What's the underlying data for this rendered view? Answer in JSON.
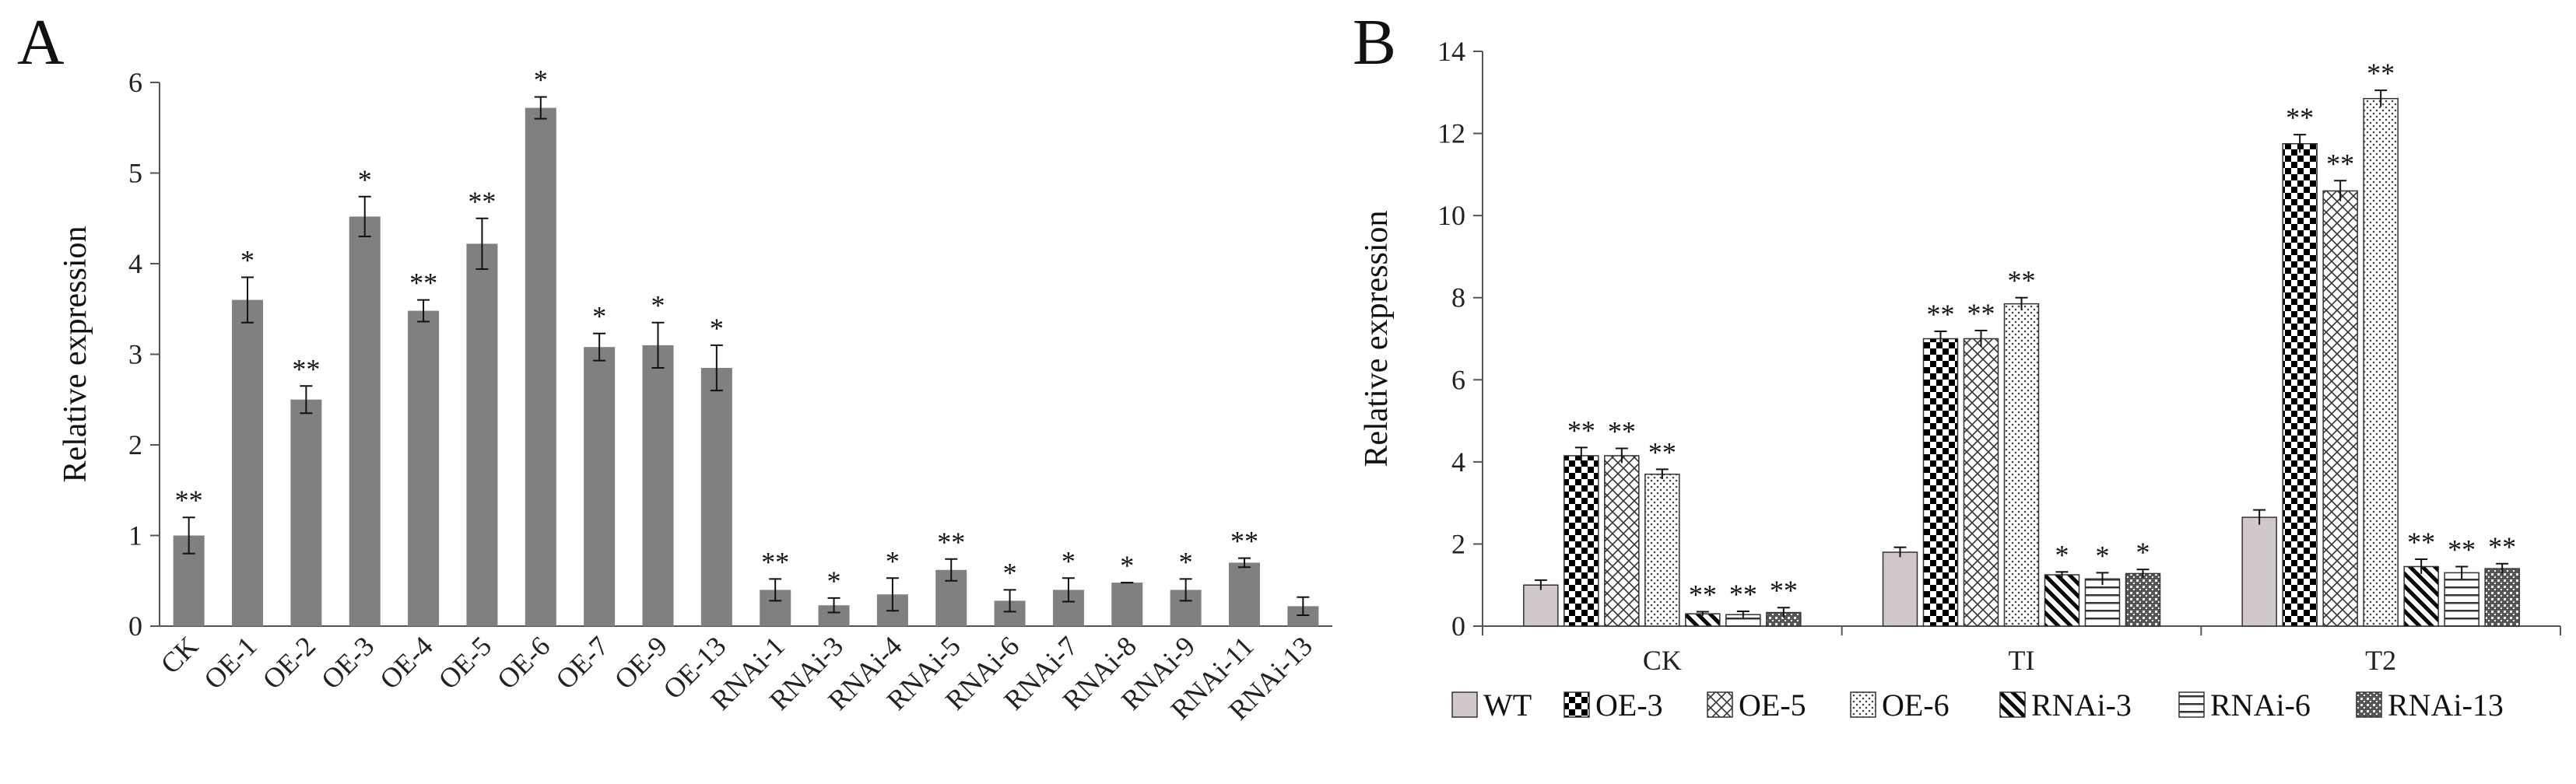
{
  "chart_data": [
    {
      "panel_label": "A",
      "type": "bar",
      "ylabel": "Relative expression",
      "ylim": [
        0,
        6
      ],
      "yticks": [
        "0",
        "1",
        "2",
        "3",
        "4",
        "5",
        "6"
      ],
      "bar_color": "#808080",
      "categories": [
        "CK",
        "OE-1",
        "OE-2",
        "OE-3",
        "OE-4",
        "OE-5",
        "OE-6",
        "OE-7",
        "OE-9",
        "OE-13",
        "RNAi-1",
        "RNAi-3",
        "RNAi-4",
        "RNAi-5",
        "RNAi-6",
        "RNAi-7",
        "RNAi-8",
        "RNAi-9",
        "RNAi-11",
        "RNAi-13"
      ],
      "values": [
        1.0,
        3.6,
        2.5,
        4.52,
        3.48,
        4.22,
        5.72,
        3.08,
        3.1,
        2.85,
        0.4,
        0.23,
        0.35,
        0.62,
        0.28,
        0.4,
        0.48,
        0.4,
        0.7,
        0.22
      ],
      "errors": [
        0.2,
        0.25,
        0.15,
        0.22,
        0.12,
        0.28,
        0.12,
        0.15,
        0.25,
        0.25,
        0.12,
        0.08,
        0.18,
        0.12,
        0.12,
        0.13,
        0.0,
        0.12,
        0.05,
        0.1
      ],
      "significance": [
        "**",
        "*",
        "**",
        "*",
        "**",
        "**",
        "*",
        "*",
        "*",
        "*",
        "**",
        "*",
        "*",
        "**",
        "*",
        "*",
        "*",
        "*",
        "**",
        ""
      ]
    },
    {
      "panel_label": "B",
      "type": "bar",
      "ylabel": "Relative expression",
      "ylim": [
        0,
        14
      ],
      "yticks": [
        "0",
        "2",
        "4",
        "6",
        "8",
        "10",
        "12",
        "14"
      ],
      "categories": [
        "CK",
        "TI",
        "T2"
      ],
      "series": [
        {
          "name": "WT",
          "pattern": "solid",
          "values": [
            1.0,
            1.8,
            2.65
          ],
          "errors": [
            0.12,
            0.12,
            0.18
          ],
          "significance": [
            "",
            "",
            ""
          ]
        },
        {
          "name": "OE-3",
          "pattern": "checker",
          "values": [
            4.15,
            7.0,
            11.75
          ],
          "errors": [
            0.2,
            0.18,
            0.22
          ],
          "significance": [
            "**",
            "**",
            "**"
          ]
        },
        {
          "name": "OE-5",
          "pattern": "crosshatch",
          "values": [
            4.15,
            7.0,
            10.6
          ],
          "errors": [
            0.18,
            0.2,
            0.25
          ],
          "significance": [
            "**",
            "**",
            "**"
          ]
        },
        {
          "name": "OE-6",
          "pattern": "dots",
          "values": [
            3.7,
            7.85,
            12.85
          ],
          "errors": [
            0.12,
            0.15,
            0.2
          ],
          "significance": [
            "**",
            "**",
            "**"
          ]
        },
        {
          "name": "RNAi-3",
          "pattern": "diagonal",
          "values": [
            0.3,
            1.25,
            1.45
          ],
          "errors": [
            0.05,
            0.07,
            0.18
          ],
          "significance": [
            "**",
            "*",
            "**"
          ]
        },
        {
          "name": "RNAi-6",
          "pattern": "hlines",
          "values": [
            0.28,
            1.15,
            1.3
          ],
          "errors": [
            0.08,
            0.15,
            0.15
          ],
          "significance": [
            "**",
            "*",
            "**"
          ]
        },
        {
          "name": "RNAi-13",
          "pattern": "grid",
          "values": [
            0.33,
            1.28,
            1.4
          ],
          "errors": [
            0.12,
            0.1,
            0.12
          ],
          "significance": [
            "**",
            "*",
            "**"
          ]
        }
      ]
    }
  ]
}
